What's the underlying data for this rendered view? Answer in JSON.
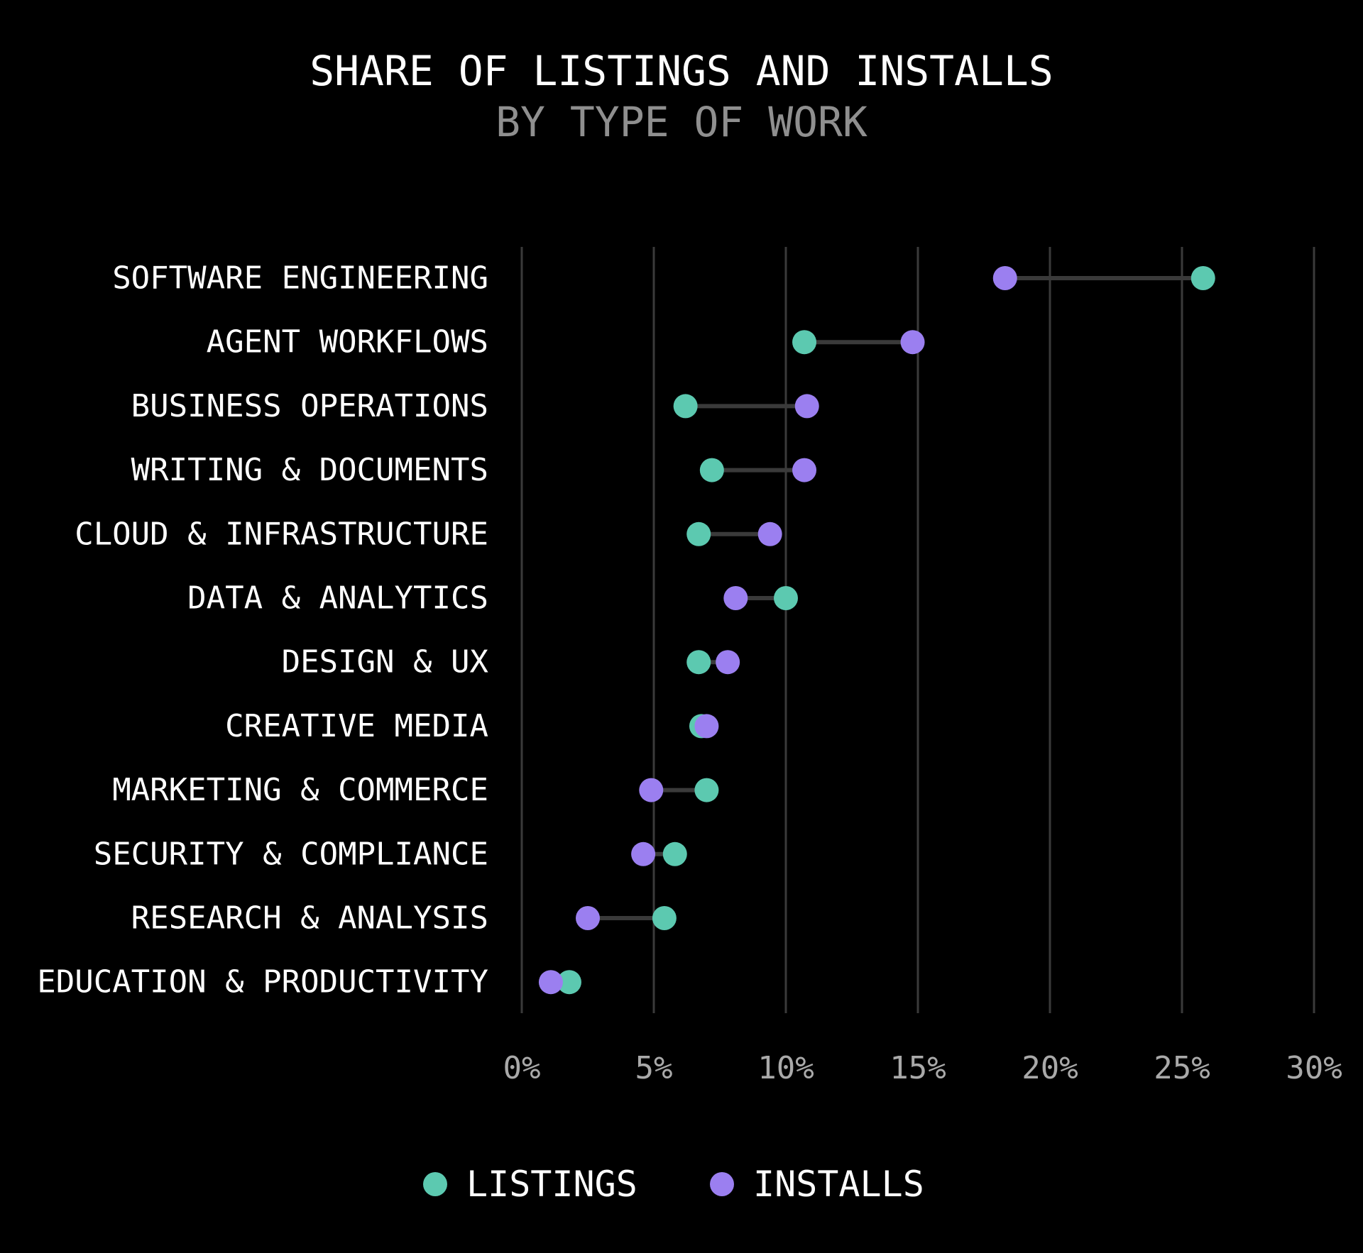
{
  "chart_data": {
    "type": "dumbbell",
    "title": "SHARE OF LISTINGS AND INSTALLS",
    "subtitle": "BY TYPE OF WORK",
    "categories": [
      "SOFTWARE ENGINEERING",
      "AGENT WORKFLOWS",
      "BUSINESS OPERATIONS",
      "WRITING & DOCUMENTS",
      "CLOUD & INFRASTRUCTURE",
      "DATA & ANALYTICS",
      "DESIGN & UX",
      "CREATIVE MEDIA",
      "MARKETING & COMMERCE",
      "SECURITY & COMPLIANCE",
      "RESEARCH & ANALYSIS",
      "EDUCATION & PRODUCTIVITY"
    ],
    "series": [
      {
        "name": "LISTINGS",
        "color": "#5cc9b0",
        "values": [
          25.8,
          10.7,
          6.2,
          7.2,
          6.7,
          10.0,
          6.7,
          6.8,
          7.0,
          5.8,
          5.4,
          1.8
        ]
      },
      {
        "name": "INSTALLS",
        "color": "#9b7ff0",
        "values": [
          18.3,
          14.8,
          10.8,
          10.7,
          9.4,
          8.1,
          7.8,
          7.0,
          4.9,
          4.6,
          2.5,
          1.1
        ]
      }
    ],
    "xlim": [
      0,
      30
    ],
    "xticks": [
      0,
      5,
      10,
      15,
      20,
      25,
      30
    ],
    "xtick_labels": [
      "0%",
      "5%",
      "10%",
      "15%",
      "20%",
      "25%",
      "30%"
    ],
    "connector_color": "#3a3a3a",
    "grid": true,
    "legend": "bottom-center"
  }
}
